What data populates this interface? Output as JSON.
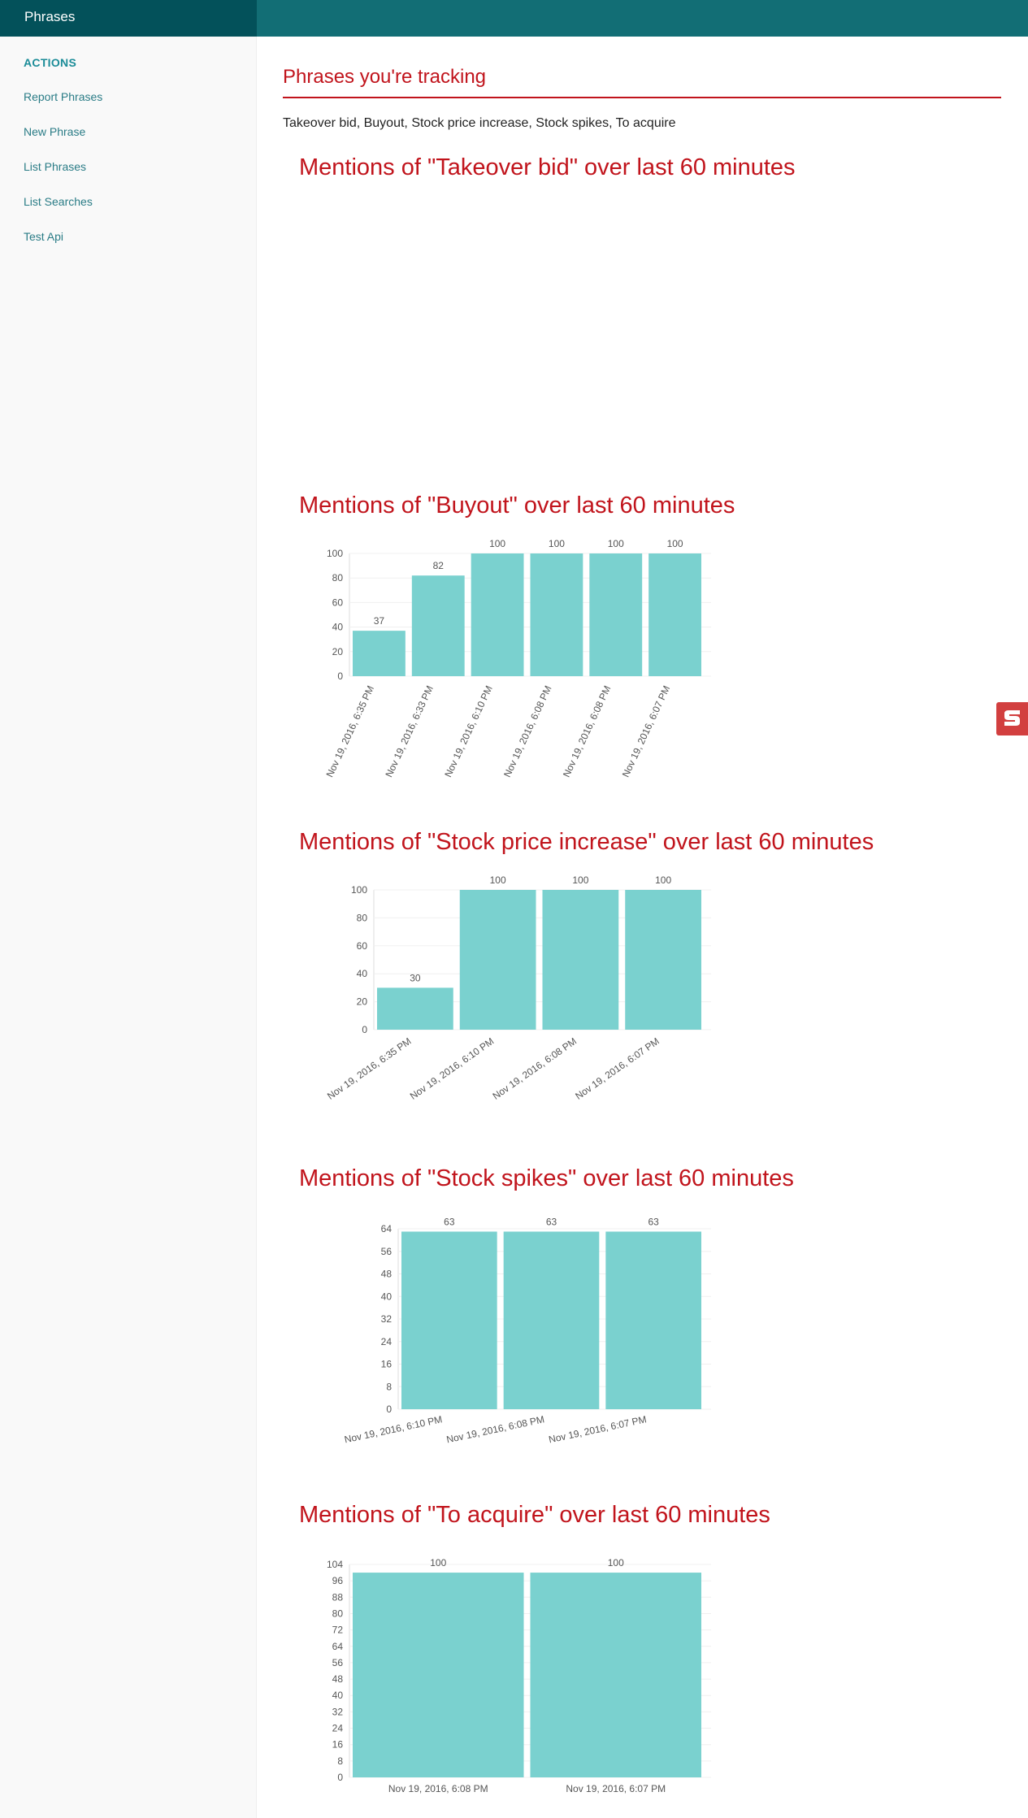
{
  "app": {
    "brand": "Phrases"
  },
  "sidebar": {
    "heading": "ACTIONS",
    "items": [
      {
        "label": "Report Phrases"
      },
      {
        "label": "New Phrase"
      },
      {
        "label": "List Phrases"
      },
      {
        "label": "List Searches"
      },
      {
        "label": "Test Api"
      }
    ]
  },
  "main": {
    "title": "Phrases you're tracking",
    "phrases_text": "Takeover bid, Buyout, Stock price increase, Stock spikes, To acquire"
  },
  "colors": {
    "bar": "#7ad1cf",
    "title": "#c1141c",
    "topbar": "#126e75",
    "brand_bg": "#03515a"
  },
  "charts": [
    {
      "title": "Mentions of \"Takeover bid\" over last 60 minutes"
    },
    {
      "title": "Mentions of \"Buyout\" over last 60 minutes"
    },
    {
      "title": "Mentions of \"Stock price increase\" over last 60 minutes"
    },
    {
      "title": "Mentions of \"Stock spikes\" over last 60 minutes"
    },
    {
      "title": "Mentions of \"To acquire\" over last 60 minutes"
    }
  ],
  "chart_data": [
    {
      "type": "bar",
      "title": "Mentions of \"Takeover bid\" over last 60 minutes",
      "categories": [],
      "values": []
    },
    {
      "type": "bar",
      "title": "Mentions of \"Buyout\" over last 60 minutes",
      "categories": [
        "Nov 19, 2016, 6:35 PM",
        "Nov 19, 2016, 6:33 PM",
        "Nov 19, 2016, 6:10 PM",
        "Nov 19, 2016, 6:08 PM",
        "Nov 19, 2016, 6:08 PM",
        "Nov 19, 2016, 6:07 PM"
      ],
      "values": [
        37,
        82,
        100,
        100,
        100,
        100
      ],
      "ylim": [
        0,
        100
      ],
      "yticks": [
        0,
        20,
        40,
        60,
        80,
        100
      ]
    },
    {
      "type": "bar",
      "title": "Mentions of \"Stock price increase\" over last 60 minutes",
      "categories": [
        "Nov 19, 2016, 6:35 PM",
        "Nov 19, 2016, 6:10 PM",
        "Nov 19, 2016, 6:08 PM",
        "Nov 19, 2016, 6:07 PM"
      ],
      "values": [
        30,
        100,
        100,
        100
      ],
      "ylim": [
        0,
        100
      ],
      "yticks": [
        0,
        20,
        40,
        60,
        80,
        100
      ]
    },
    {
      "type": "bar",
      "title": "Mentions of \"Stock spikes\" over last 60 minutes",
      "categories": [
        "Nov 19, 2016, 6:10 PM",
        "Nov 19, 2016, 6:08 PM",
        "Nov 19, 2016, 6:07 PM"
      ],
      "values": [
        63,
        63,
        63
      ],
      "ylim": [
        0,
        64
      ],
      "yticks": [
        0,
        8,
        16,
        24,
        32,
        40,
        48,
        56,
        64
      ]
    },
    {
      "type": "bar",
      "title": "Mentions of \"To acquire\" over last 60 minutes",
      "categories": [
        "Nov 19, 2016, 6:08 PM",
        "Nov 19, 2016, 6:07 PM"
      ],
      "values": [
        100,
        100
      ],
      "ylim": [
        0,
        104
      ],
      "yticks": [
        0,
        8,
        16,
        24,
        32,
        40,
        48,
        56,
        64,
        72,
        80,
        88,
        96,
        104
      ]
    }
  ]
}
